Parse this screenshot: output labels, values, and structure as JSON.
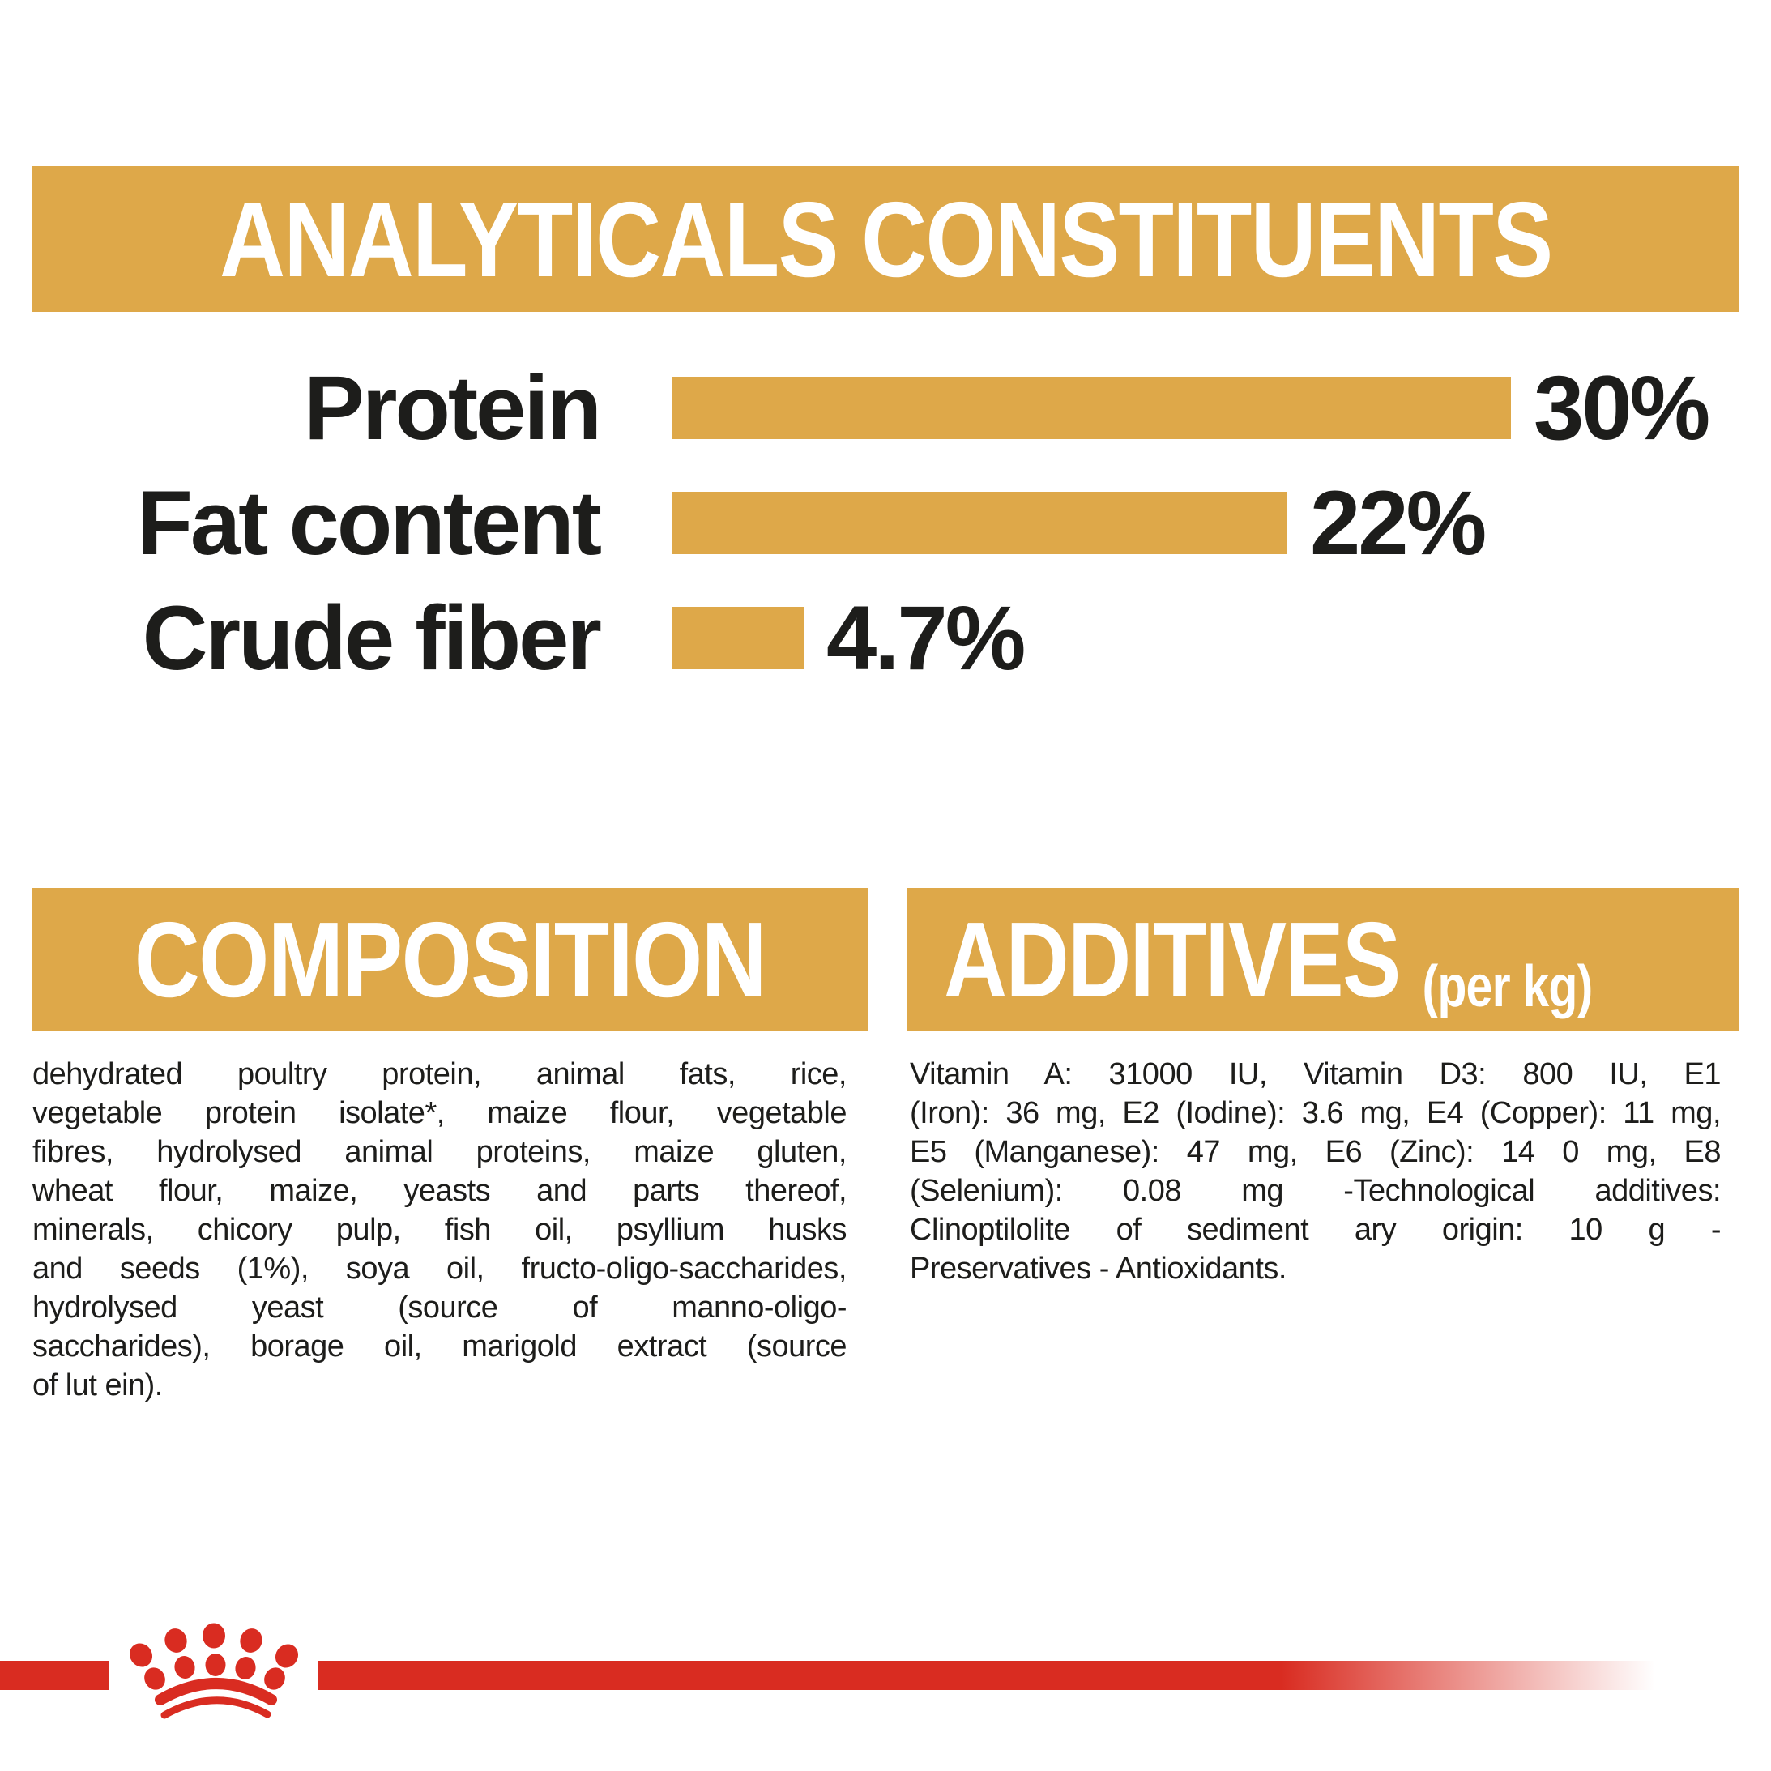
{
  "colors": {
    "gold": "#DEA849",
    "red": "#D92C21",
    "text": "#1D1D1B",
    "banner_text": "#FFFFFF"
  },
  "analyticals": {
    "title": "ANALYTICALS CONSTITUENTS",
    "chart_data": {
      "type": "bar",
      "orientation": "horizontal",
      "categories": [
        "Protein",
        "Fat content",
        "Crude fiber"
      ],
      "values": [
        30,
        22,
        4.7
      ],
      "value_labels": [
        "30%",
        "22%",
        "4.7%"
      ],
      "unit": "%",
      "xlim": [
        0,
        30
      ],
      "bar_color": "#DEA849",
      "grid": false,
      "legend": false
    }
  },
  "composition": {
    "title": "COMPOSITION",
    "lines": [
      "dehydrated poultry protein, animal fats, rice,",
      "vegetable protein isolate*, maize flour, vegetable",
      "fibres, hydrolysed animal proteins, maize gluten,",
      "wheat flour, maize, yeasts and parts thereof,",
      "minerals, chicory pulp, fish oil, psyllium husks",
      "and seeds (1%), soya oil, fructo-oligo-saccharides,",
      "hydrolysed yeast (source of manno-oligo-",
      "saccharides), borage oil, marigold extract (source",
      "of lut ein)."
    ]
  },
  "additives": {
    "title": "ADDITIVES",
    "title_suffix": "(per kg)",
    "lines": [
      "Vitamin A: 31000 IU, Vitamin D3: 800 IU, E1",
      "(Iron): 36 mg, E2 (Iodine): 3.6 mg, E4 (Copper): 11 mg,",
      "E5 (Manganese): 47 mg, E6 (Zinc): 14 0 mg, E8",
      "(Selenium): 0.08 mg -Technological additives:",
      "Clinoptilolite of sediment ary origin: 10 g -",
      "Preservatives - Antioxidants."
    ]
  },
  "footer": {
    "logo": "royal-canin-crown"
  }
}
